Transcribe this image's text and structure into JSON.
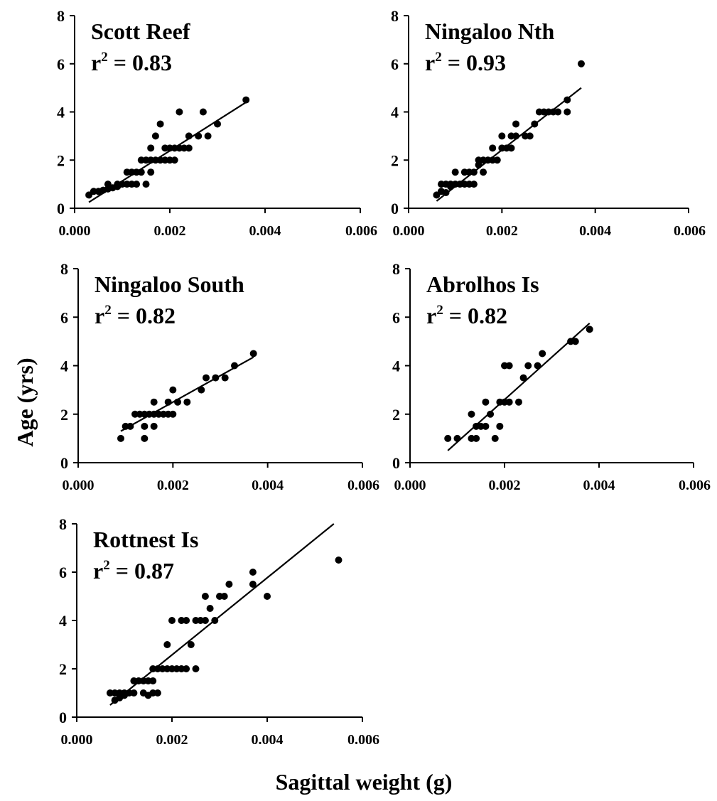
{
  "figure": {
    "ylabel": "Age (yrs)",
    "xlabel": "Sagittal weight (g)"
  },
  "chart_data": [
    {
      "type": "scatter",
      "title": "Scott Reef",
      "r2_label": "r",
      "r2_exp": "2",
      "r2_value": " = 0.83",
      "xlim": [
        0,
        0.006
      ],
      "ylim": [
        0,
        8
      ],
      "xticks": [
        "0.000",
        "0.002",
        "0.004",
        "0.006"
      ],
      "yticks": [
        "0",
        "2",
        "4",
        "6",
        "8"
      ],
      "points": [
        [
          0.0003,
          0.55
        ],
        [
          0.0004,
          0.7
        ],
        [
          0.0005,
          0.7
        ],
        [
          0.0006,
          0.75
        ],
        [
          0.0007,
          0.8
        ],
        [
          0.0007,
          1.0
        ],
        [
          0.0008,
          0.85
        ],
        [
          0.0009,
          0.9
        ],
        [
          0.0009,
          1.0
        ],
        [
          0.001,
          1.0
        ],
        [
          0.0011,
          1.0
        ],
        [
          0.0011,
          1.5
        ],
        [
          0.0012,
          1.0
        ],
        [
          0.0012,
          1.5
        ],
        [
          0.0013,
          1.0
        ],
        [
          0.0013,
          1.5
        ],
        [
          0.0014,
          1.5
        ],
        [
          0.0014,
          2.0
        ],
        [
          0.0015,
          1.0
        ],
        [
          0.0015,
          2.0
        ],
        [
          0.0016,
          1.5
        ],
        [
          0.0016,
          2.0
        ],
        [
          0.0016,
          2.5
        ],
        [
          0.0017,
          2.0
        ],
        [
          0.0017,
          3.0
        ],
        [
          0.0018,
          2.0
        ],
        [
          0.0018,
          3.5
        ],
        [
          0.0019,
          2.0
        ],
        [
          0.0019,
          2.5
        ],
        [
          0.002,
          2.0
        ],
        [
          0.002,
          2.5
        ],
        [
          0.0021,
          2.0
        ],
        [
          0.0021,
          2.5
        ],
        [
          0.0022,
          2.5
        ],
        [
          0.0022,
          4.0
        ],
        [
          0.0023,
          2.5
        ],
        [
          0.0024,
          2.5
        ],
        [
          0.0024,
          3.0
        ],
        [
          0.0026,
          3.0
        ],
        [
          0.0027,
          4.0
        ],
        [
          0.0028,
          3.0
        ],
        [
          0.003,
          3.5
        ],
        [
          0.0036,
          4.5
        ]
      ],
      "fit": [
        [
          0.0003,
          0.25
        ],
        [
          0.0036,
          4.4
        ]
      ]
    },
    {
      "type": "scatter",
      "title": "Ningaloo Nth",
      "r2_label": "r",
      "r2_exp": "2",
      "r2_value": " = 0.93",
      "xlim": [
        0,
        0.006
      ],
      "ylim": [
        0,
        8
      ],
      "xticks": [
        "0.000",
        "0.002",
        "0.004",
        "0.006"
      ],
      "yticks": [
        "0",
        "2",
        "4",
        "6",
        "8"
      ],
      "points": [
        [
          0.0006,
          0.55
        ],
        [
          0.0007,
          0.7
        ],
        [
          0.0007,
          1.0
        ],
        [
          0.0008,
          0.65
        ],
        [
          0.0008,
          1.0
        ],
        [
          0.0009,
          0.9
        ],
        [
          0.0009,
          1.0
        ],
        [
          0.001,
          1.0
        ],
        [
          0.001,
          1.5
        ],
        [
          0.0011,
          1.0
        ],
        [
          0.0012,
          1.0
        ],
        [
          0.0012,
          1.5
        ],
        [
          0.0013,
          1.0
        ],
        [
          0.0013,
          1.5
        ],
        [
          0.0014,
          1.0
        ],
        [
          0.0014,
          1.5
        ],
        [
          0.0015,
          1.8
        ],
        [
          0.0015,
          2.0
        ],
        [
          0.0016,
          1.5
        ],
        [
          0.0016,
          2.0
        ],
        [
          0.0017,
          2.0
        ],
        [
          0.0018,
          2.0
        ],
        [
          0.0018,
          2.5
        ],
        [
          0.0019,
          2.0
        ],
        [
          0.002,
          2.5
        ],
        [
          0.002,
          3.0
        ],
        [
          0.0021,
          2.5
        ],
        [
          0.0022,
          2.5
        ],
        [
          0.0022,
          3.0
        ],
        [
          0.0023,
          3.0
        ],
        [
          0.0023,
          3.5
        ],
        [
          0.0025,
          3.0
        ],
        [
          0.0026,
          3.0
        ],
        [
          0.0027,
          3.5
        ],
        [
          0.0028,
          4.0
        ],
        [
          0.0029,
          4.0
        ],
        [
          0.003,
          4.0
        ],
        [
          0.0031,
          4.0
        ],
        [
          0.0032,
          4.0
        ],
        [
          0.0034,
          4.0
        ],
        [
          0.0034,
          4.5
        ],
        [
          0.0037,
          6.0
        ]
      ],
      "fit": [
        [
          0.0006,
          0.3
        ],
        [
          0.0037,
          5.0
        ]
      ]
    },
    {
      "type": "scatter",
      "title": "Ningaloo South",
      "r2_label": "r",
      "r2_exp": "2",
      "r2_value": " = 0.82",
      "xlim": [
        0,
        0.006
      ],
      "ylim": [
        0,
        8
      ],
      "xticks": [
        "0.000",
        "0.002",
        "0.004",
        "0.006"
      ],
      "yticks": [
        "0",
        "2",
        "4",
        "6",
        "8"
      ],
      "points": [
        [
          0.0009,
          1.0
        ],
        [
          0.001,
          1.5
        ],
        [
          0.0011,
          1.5
        ],
        [
          0.0012,
          2.0
        ],
        [
          0.0013,
          2.0
        ],
        [
          0.0014,
          1.0
        ],
        [
          0.0014,
          1.5
        ],
        [
          0.0014,
          2.0
        ],
        [
          0.0015,
          2.0
        ],
        [
          0.0016,
          1.5
        ],
        [
          0.0016,
          2.0
        ],
        [
          0.0016,
          2.5
        ],
        [
          0.0017,
          2.0
        ],
        [
          0.0018,
          2.0
        ],
        [
          0.0019,
          2.0
        ],
        [
          0.0019,
          2.5
        ],
        [
          0.002,
          2.0
        ],
        [
          0.002,
          3.0
        ],
        [
          0.0021,
          2.5
        ],
        [
          0.0023,
          2.5
        ],
        [
          0.0026,
          3.0
        ],
        [
          0.0027,
          3.5
        ],
        [
          0.0029,
          3.5
        ],
        [
          0.0031,
          3.5
        ],
        [
          0.0033,
          4.0
        ],
        [
          0.0037,
          4.5
        ]
      ],
      "fit": [
        [
          0.0009,
          1.3
        ],
        [
          0.0037,
          4.35
        ]
      ]
    },
    {
      "type": "scatter",
      "title": "Abrolhos Is",
      "r2_label": "r",
      "r2_exp": "2",
      "r2_value": " = 0.82",
      "xlim": [
        0,
        0.006
      ],
      "ylim": [
        0,
        8
      ],
      "xticks": [
        "0.000",
        "0.002",
        "0.004",
        "0.006"
      ],
      "yticks": [
        "0",
        "2",
        "4",
        "6",
        "8"
      ],
      "points": [
        [
          0.0008,
          1.0
        ],
        [
          0.001,
          1.0
        ],
        [
          0.0013,
          1.0
        ],
        [
          0.0013,
          2.0
        ],
        [
          0.0014,
          1.0
        ],
        [
          0.0014,
          1.5
        ],
        [
          0.0015,
          1.5
        ],
        [
          0.0016,
          1.5
        ],
        [
          0.0016,
          2.5
        ],
        [
          0.0017,
          2.0
        ],
        [
          0.0018,
          1.0
        ],
        [
          0.0019,
          1.5
        ],
        [
          0.0019,
          2.5
        ],
        [
          0.002,
          2.5
        ],
        [
          0.002,
          4.0
        ],
        [
          0.0021,
          2.5
        ],
        [
          0.0021,
          4.0
        ],
        [
          0.0023,
          2.5
        ],
        [
          0.0024,
          3.5
        ],
        [
          0.0025,
          4.0
        ],
        [
          0.0027,
          4.0
        ],
        [
          0.0028,
          4.5
        ],
        [
          0.0034,
          5.0
        ],
        [
          0.0035,
          5.0
        ],
        [
          0.0038,
          5.5
        ]
      ],
      "fit": [
        [
          0.0008,
          0.5
        ],
        [
          0.0038,
          5.75
        ]
      ]
    },
    {
      "type": "scatter",
      "title": "Rottnest Is",
      "r2_label": "r",
      "r2_exp": "2",
      "r2_value": " = 0.87",
      "xlim": [
        0,
        0.006
      ],
      "ylim": [
        0,
        8
      ],
      "xticks": [
        "0.000",
        "0.002",
        "0.004",
        "0.006"
      ],
      "yticks": [
        "0",
        "2",
        "4",
        "6",
        "8"
      ],
      "points": [
        [
          0.0007,
          1.0
        ],
        [
          0.0008,
          0.7
        ],
        [
          0.0008,
          1.0
        ],
        [
          0.0009,
          0.8
        ],
        [
          0.0009,
          1.0
        ],
        [
          0.001,
          0.9
        ],
        [
          0.001,
          1.0
        ],
        [
          0.0011,
          1.0
        ],
        [
          0.0012,
          1.0
        ],
        [
          0.0012,
          1.5
        ],
        [
          0.0013,
          1.5
        ],
        [
          0.0014,
          1.0
        ],
        [
          0.0014,
          1.5
        ],
        [
          0.0015,
          0.9
        ],
        [
          0.0015,
          1.5
        ],
        [
          0.0016,
          1.0
        ],
        [
          0.0016,
          1.5
        ],
        [
          0.0016,
          2.0
        ],
        [
          0.0017,
          1.0
        ],
        [
          0.0017,
          2.0
        ],
        [
          0.0018,
          2.0
        ],
        [
          0.0019,
          2.0
        ],
        [
          0.0019,
          3.0
        ],
        [
          0.002,
          2.0
        ],
        [
          0.002,
          4.0
        ],
        [
          0.0021,
          2.0
        ],
        [
          0.0022,
          2.0
        ],
        [
          0.0022,
          4.0
        ],
        [
          0.0023,
          2.0
        ],
        [
          0.0023,
          4.0
        ],
        [
          0.0024,
          3.0
        ],
        [
          0.0025,
          2.0
        ],
        [
          0.0025,
          4.0
        ],
        [
          0.0026,
          4.0
        ],
        [
          0.0027,
          4.0
        ],
        [
          0.0027,
          5.0
        ],
        [
          0.0028,
          4.5
        ],
        [
          0.0029,
          4.0
        ],
        [
          0.003,
          5.0
        ],
        [
          0.0031,
          5.0
        ],
        [
          0.0032,
          5.5
        ],
        [
          0.0037,
          5.5
        ],
        [
          0.0037,
          6.0
        ],
        [
          0.004,
          5.0
        ],
        [
          0.0055,
          6.5
        ]
      ],
      "fit": [
        [
          0.0007,
          0.5
        ],
        [
          0.0054,
          8.0
        ]
      ]
    }
  ]
}
